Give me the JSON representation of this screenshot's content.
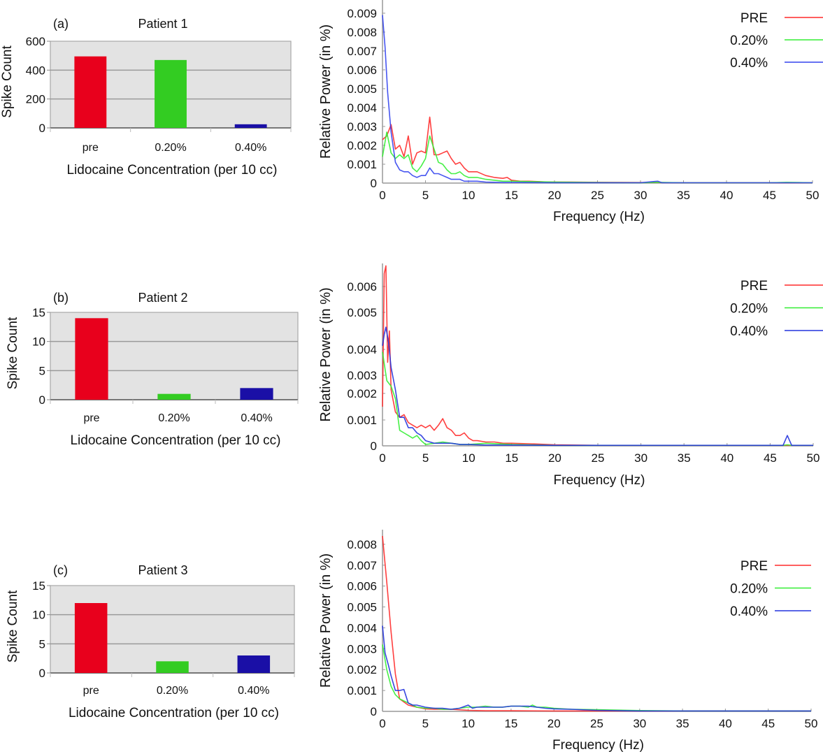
{
  "chart_data": [
    {
      "type": "bar",
      "panel_label": "(a)",
      "title": "Patient 1",
      "xlabel": "Lidocaine Concentration (per 10 cc)",
      "ylabel": "Spike Count",
      "categories": [
        "pre",
        "0.20%",
        "0.40%"
      ],
      "values": [
        495,
        470,
        25
      ],
      "colors": [
        "#e8001c",
        "#33cc22",
        "#1a0fa6"
      ],
      "ylim": [
        0,
        600
      ],
      "yticks": [
        0,
        200,
        400,
        600
      ],
      "grid": true,
      "background": "#e3e3e3"
    },
    {
      "type": "line",
      "title": "",
      "xlabel": "Frequency (Hz)",
      "ylabel": "Relative Power (in %)",
      "xlim": [
        0,
        50
      ],
      "xticks": [
        0,
        5,
        10,
        15,
        20,
        25,
        30,
        35,
        40,
        45,
        50
      ],
      "ylim": [
        0,
        0.0097
      ],
      "yticks": [
        0,
        0.001,
        0.002,
        0.003,
        0.004,
        0.005,
        0.006,
        0.007,
        0.008,
        0.009
      ],
      "ytick_labels": [
        "0",
        "0.001",
        "0.002",
        "0.003",
        "0.004",
        "0.005",
        "0.006",
        "0.007",
        "0.008",
        "0.009"
      ],
      "legend_position": "top-right",
      "series": [
        {
          "name": "PRE",
          "color": "#ff2a2a",
          "x": [
            0,
            0.5,
            1,
            1.5,
            2,
            2.5,
            3,
            3.5,
            4,
            4.5,
            5,
            5.5,
            6,
            6.5,
            7,
            7.5,
            8,
            8.5,
            9,
            9.5,
            10,
            10.5,
            11,
            12,
            13,
            14,
            14.5,
            15,
            16,
            17,
            18,
            19,
            20,
            22,
            25,
            30,
            32,
            35,
            40,
            45,
            50
          ],
          "y": [
            0.0023,
            0.0025,
            0.0031,
            0.0018,
            0.002,
            0.0014,
            0.0025,
            0.001,
            0.0016,
            0.0017,
            0.0016,
            0.0035,
            0.0015,
            0.0015,
            0.0016,
            0.0017,
            0.0013,
            0.001,
            0.0011,
            0.0008,
            0.0006,
            0.0006,
            0.0006,
            0.0004,
            0.0003,
            0.00025,
            0.0003,
            0.00015,
            0.0001,
            0.0001,
            8e-05,
            6e-05,
            5e-05,
            5e-05,
            4e-05,
            3e-05,
            3e-05,
            2e-05,
            2e-05,
            2e-05,
            2e-05
          ]
        },
        {
          "name": "0.20%",
          "color": "#33ee33",
          "x": [
            0,
            0.5,
            1,
            1.5,
            2,
            2.5,
            3,
            3.5,
            4,
            4.5,
            5,
            5.5,
            6,
            6.5,
            7,
            7.5,
            8,
            8.5,
            9,
            9.5,
            10,
            11,
            12,
            13,
            14,
            15,
            17,
            20,
            25,
            30,
            32,
            35,
            40,
            45,
            47,
            50
          ],
          "y": [
            0.0014,
            0.0027,
            0.0016,
            0.0013,
            0.0015,
            0.0013,
            0.0015,
            0.0008,
            0.0006,
            0.0009,
            0.0013,
            0.0025,
            0.0018,
            0.0011,
            0.001,
            0.0007,
            0.0005,
            0.0005,
            0.0006,
            0.0004,
            0.0003,
            0.0003,
            0.0002,
            0.00015,
            0.0001,
            0.0001,
            8e-05,
            5e-05,
            3e-05,
            2e-05,
            4e-05,
            2e-05,
            2e-05,
            2e-05,
            4e-05,
            2e-05
          ]
        },
        {
          "name": "0.40%",
          "color": "#3344ee",
          "x": [
            0,
            0.3,
            0.6,
            1,
            1.5,
            2,
            2.5,
            3,
            3.5,
            4,
            4.5,
            5,
            5.5,
            6,
            6.5,
            7,
            7.5,
            8,
            8.5,
            9,
            9.5,
            10,
            11,
            12,
            14,
            16,
            20,
            25,
            30,
            31.5,
            32,
            32.5,
            35,
            40,
            45,
            50
          ],
          "y": [
            0.0089,
            0.0072,
            0.0048,
            0.0027,
            0.0011,
            0.0007,
            0.0006,
            0.0006,
            0.0004,
            0.0003,
            0.0004,
            0.0004,
            0.0008,
            0.0005,
            0.0005,
            0.0004,
            0.0003,
            0.0002,
            0.0002,
            0.0002,
            0.0001,
            0.0001,
            0.0001,
            5e-05,
            3e-05,
            3e-05,
            2e-05,
            2e-05,
            2e-05,
            8e-05,
            0.0001,
            2e-05,
            2e-05,
            2e-05,
            2e-05,
            2e-05
          ]
        }
      ]
    },
    {
      "type": "bar",
      "panel_label": "(b)",
      "title": "Patient 2",
      "xlabel": "Lidocaine Concentration (per 10 cc)",
      "ylabel": "Spike Count",
      "categories": [
        "pre",
        "0.20%",
        "0.40%"
      ],
      "values": [
        14,
        1,
        2
      ],
      "colors": [
        "#e8001c",
        "#33cc22",
        "#1a0fa6"
      ],
      "ylim": [
        0,
        15
      ],
      "yticks": [
        0,
        5,
        10,
        15
      ],
      "grid": true,
      "background": "#e3e3e3"
    },
    {
      "type": "line",
      "title": "",
      "xlabel": "Frequency (Hz)",
      "ylabel": "Relative Power (in %)",
      "xlim": [
        0,
        50
      ],
      "xticks": [
        0,
        5,
        10,
        15,
        20,
        25,
        30,
        35,
        40,
        45,
        50
      ],
      "ylim": [
        0,
        0.0068
      ],
      "yticks": [
        0,
        0.001,
        0.002,
        0.003,
        0.004,
        0.005,
        0.006
      ],
      "ytick_labels": [
        "0",
        "0.001",
        "0.002",
        "0.003",
        "0.004",
        "0.005",
        "0.006"
      ],
      "y_scale_note": "nonuniform tick spacing as printed",
      "legend_position": "top-right",
      "series": [
        {
          "name": "PRE",
          "color": "#ff2a2a",
          "x": [
            0,
            0.2,
            0.4,
            0.6,
            0.8,
            1,
            1.5,
            2,
            2.5,
            3,
            3.5,
            4,
            4.5,
            5,
            5.5,
            6,
            6.5,
            7,
            7.5,
            8,
            8.5,
            9,
            9.5,
            10,
            10.5,
            11,
            12,
            13,
            14,
            15,
            17,
            20,
            25,
            30,
            35,
            40,
            45,
            50
          ],
          "y": [
            0.0015,
            0.0065,
            0.0068,
            0.0035,
            0.0045,
            0.0022,
            0.0013,
            0.0011,
            0.0012,
            0.0009,
            0.0008,
            0.0007,
            0.0008,
            0.0007,
            0.0008,
            0.0006,
            0.0008,
            0.00105,
            0.0007,
            0.0006,
            0.0004,
            0.0004,
            0.0005,
            0.0003,
            0.0002,
            0.0002,
            0.00015,
            0.00015,
            0.0001,
            0.0001,
            8e-05,
            4e-05,
            2e-05,
            2e-05,
            2e-05,
            2e-05,
            2e-05,
            2e-05
          ]
        },
        {
          "name": "0.20%",
          "color": "#33ee33",
          "x": [
            0,
            0.5,
            1,
            1.5,
            2,
            2.5,
            3,
            3.5,
            4,
            4.5,
            5,
            6,
            7,
            8,
            9,
            10,
            12,
            15,
            20,
            25,
            30,
            40,
            46.5,
            47,
            47.5,
            50
          ],
          "y": [
            0.0039,
            0.0027,
            0.0024,
            0.0018,
            0.0006,
            0.0005,
            0.0004,
            0.0003,
            0.0004,
            0.0002,
            5e-05,
            0.0001,
            0.00015,
            0.0001,
            5e-05,
            5e-05,
            0.0001,
            5e-05,
            2e-05,
            2e-05,
            2e-05,
            2e-05,
            2e-05,
            4e-05,
            2e-05,
            2e-05
          ]
        },
        {
          "name": "0.40%",
          "color": "#2233dd",
          "x": [
            0,
            0.2,
            0.4,
            0.7,
            1,
            1.5,
            2,
            2.5,
            3,
            3.5,
            4,
            4.5,
            5,
            6,
            7,
            8,
            9,
            10,
            12,
            15,
            20,
            25,
            30,
            40,
            46.5,
            47,
            47.5,
            50
          ],
          "y": [
            0.0041,
            0.0044,
            0.0046,
            0.0042,
            0.0033,
            0.0022,
            0.0011,
            0.0011,
            0.0007,
            0.0007,
            0.0005,
            0.0004,
            0.0002,
            0.0001,
            0.0001,
            0.0001,
            5e-05,
            5e-05,
            3e-05,
            3e-05,
            2e-05,
            2e-05,
            2e-05,
            2e-05,
            2e-05,
            0.0004,
            2e-05,
            2e-05
          ]
        }
      ]
    },
    {
      "type": "bar",
      "panel_label": "(c)",
      "title": "Patient 3",
      "xlabel": "Lidocaine Concentration (per 10 cc)",
      "ylabel": "Spike Count",
      "categories": [
        "pre",
        "0.20%",
        "0.40%"
      ],
      "values": [
        12,
        2,
        3
      ],
      "colors": [
        "#e8001c",
        "#33cc22",
        "#1a0fa6"
      ],
      "ylim": [
        0,
        15
      ],
      "yticks": [
        0,
        5,
        10,
        15
      ],
      "grid": true,
      "background": "#e3e3e3"
    },
    {
      "type": "line",
      "title": "",
      "xlabel": "Frequency (Hz)",
      "ylabel": "Relative Power (in %)",
      "xlim": [
        0,
        50
      ],
      "xticks": [
        0,
        5,
        10,
        15,
        20,
        25,
        30,
        35,
        40,
        45,
        50
      ],
      "ylim": [
        0,
        0.0087
      ],
      "yticks": [
        0,
        0.001,
        0.002,
        0.003,
        0.004,
        0.005,
        0.006,
        0.007,
        0.008
      ],
      "ytick_labels": [
        "0",
        "0.001",
        "0.002",
        "0.003",
        "0.004",
        "0.005",
        "0.006",
        "0.007",
        "0.008"
      ],
      "legend_position": "top-right",
      "series": [
        {
          "name": "PRE",
          "color": "#ff2a2a",
          "x": [
            0,
            0.5,
            1,
            1.5,
            2,
            3,
            4,
            5,
            6,
            8,
            10,
            12,
            15,
            20,
            25,
            30,
            35,
            40,
            45,
            50
          ],
          "y": [
            0.0084,
            0.0062,
            0.0038,
            0.0018,
            0.0006,
            0.0003,
            0.0002,
            0.00012,
            0.0001,
            0.0001,
            5e-05,
            3e-05,
            3e-05,
            2e-05,
            2e-05,
            2e-05,
            2e-05,
            2e-05,
            2e-05,
            2e-05
          ]
        },
        {
          "name": "0.20%",
          "color": "#33ee33",
          "x": [
            0,
            0.5,
            1,
            1.5,
            2,
            3,
            4,
            5,
            6,
            7,
            8,
            9,
            10,
            11,
            12,
            13,
            14,
            15,
            16,
            17,
            17.5,
            18,
            19,
            20,
            22,
            25,
            30,
            35,
            40,
            45,
            50
          ],
          "y": [
            0.0032,
            0.002,
            0.0012,
            0.0008,
            0.0006,
            0.0004,
            0.0002,
            0.00015,
            0.00015,
            0.0001,
            0.0001,
            0.00015,
            0.0002,
            0.0002,
            0.00025,
            0.0002,
            0.0002,
            0.00025,
            0.00025,
            0.0002,
            0.0003,
            0.0002,
            0.0002,
            0.00015,
            0.0001,
            8e-05,
            4e-05,
            2e-05,
            2e-05,
            2e-05,
            2e-05
          ]
        },
        {
          "name": "0.40%",
          "color": "#2233dd",
          "x": [
            0,
            0.3,
            0.7,
            1,
            1.5,
            2,
            2.5,
            3,
            3.5,
            4,
            5,
            6,
            7,
            8,
            9,
            10,
            10.5,
            11,
            12,
            13,
            14,
            15,
            16,
            17,
            18,
            19,
            20,
            22,
            25,
            30,
            35,
            40,
            45,
            50
          ],
          "y": [
            0.0041,
            0.0028,
            0.0022,
            0.0017,
            0.001,
            0.001,
            0.00105,
            0.0004,
            0.0003,
            0.0003,
            0.0002,
            0.00015,
            0.00015,
            0.0001,
            0.00015,
            0.0003,
            0.00015,
            0.0002,
            0.0002,
            0.0002,
            0.0002,
            0.00025,
            0.00025,
            0.00025,
            0.0002,
            0.00015,
            0.00012,
            0.0001,
            5e-05,
            2e-05,
            2e-05,
            2e-05,
            2e-05,
            2e-05
          ]
        }
      ]
    }
  ]
}
